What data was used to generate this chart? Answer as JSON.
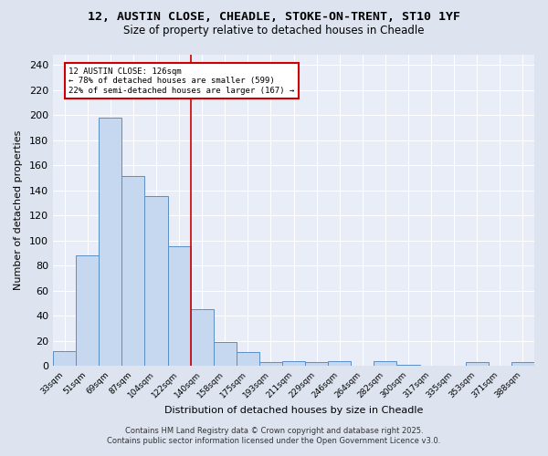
{
  "title_line1": "12, AUSTIN CLOSE, CHEADLE, STOKE-ON-TRENT, ST10 1YF",
  "title_line2": "Size of property relative to detached houses in Cheadle",
  "xlabel": "Distribution of detached houses by size in Cheadle",
  "ylabel": "Number of detached properties",
  "categories": [
    "33sqm",
    "51sqm",
    "69sqm",
    "87sqm",
    "104sqm",
    "122sqm",
    "140sqm",
    "158sqm",
    "175sqm",
    "193sqm",
    "211sqm",
    "229sqm",
    "246sqm",
    "264sqm",
    "282sqm",
    "300sqm",
    "317sqm",
    "335sqm",
    "353sqm",
    "371sqm",
    "388sqm"
  ],
  "values": [
    12,
    88,
    198,
    151,
    135,
    95,
    45,
    19,
    11,
    3,
    4,
    3,
    4,
    0,
    4,
    1,
    0,
    0,
    3,
    0,
    3
  ],
  "bar_color": "#c5d8f0",
  "bar_edge_color": "#5b8ec4",
  "vline_x_idx": 5.5,
  "vline_color": "#cc0000",
  "annotation_text": "12 AUSTIN CLOSE: 126sqm\n← 78% of detached houses are smaller (599)\n22% of semi-detached houses are larger (167) →",
  "annotation_box_color": "white",
  "annotation_box_edge": "#cc0000",
  "ylim": [
    0,
    248
  ],
  "yticks": [
    0,
    20,
    40,
    60,
    80,
    100,
    120,
    140,
    160,
    180,
    200,
    220,
    240
  ],
  "footer_line1": "Contains HM Land Registry data © Crown copyright and database right 2025.",
  "footer_line2": "Contains public sector information licensed under the Open Government Licence v3.0.",
  "bg_color": "#dde4f0",
  "plot_bg_color": "#e8edf7"
}
